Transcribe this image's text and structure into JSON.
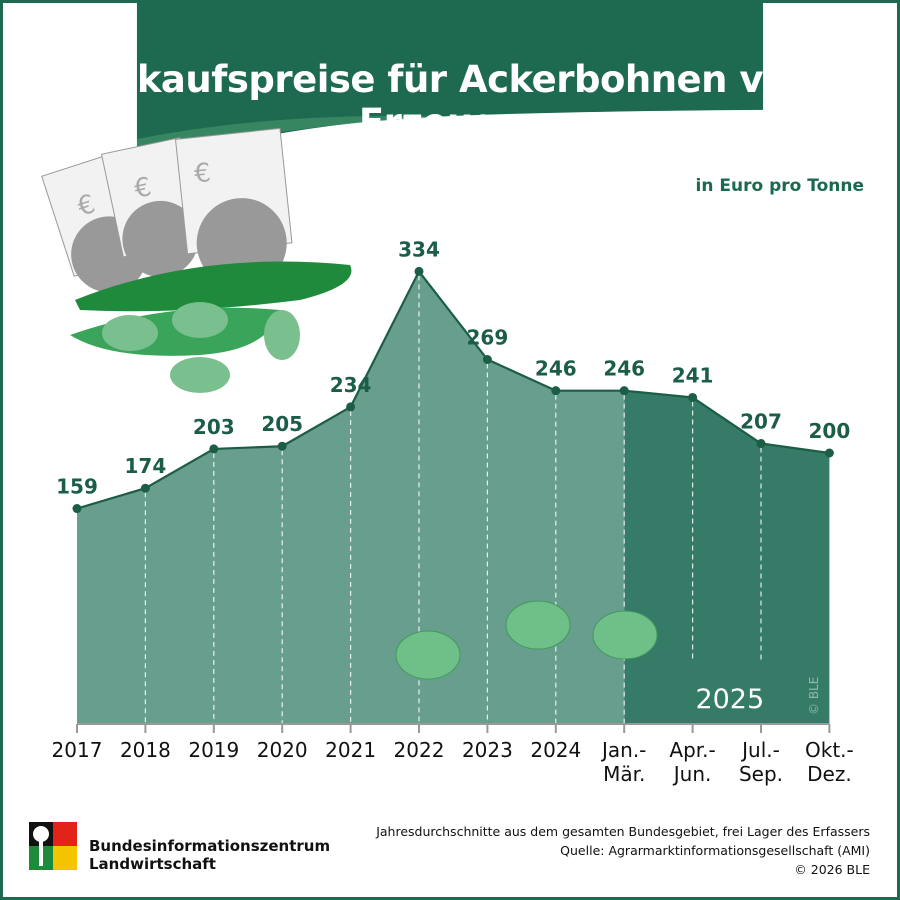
{
  "title": "Einkaufspreise für Ackerbohnen vom Erzeuger",
  "unit_label": "in Euro pro Tonne",
  "chart_data": {
    "type": "area",
    "title": "Einkaufspreise für Ackerbohnen vom Erzeuger",
    "ylabel": "in Euro pro Tonne",
    "categories": [
      "2017",
      "2018",
      "2019",
      "2020",
      "2021",
      "2022",
      "2023",
      "2024",
      "Jan.-\nMär.",
      "Apr.-\nJun.",
      "Jul.-\nSep.",
      "Okt.-\nDez."
    ],
    "tick_labels": [
      [
        "2017"
      ],
      [
        "2018"
      ],
      [
        "2019"
      ],
      [
        "2020"
      ],
      [
        "2021"
      ],
      [
        "2022"
      ],
      [
        "2023"
      ],
      [
        "2024"
      ],
      [
        "Jan.-",
        "Mär."
      ],
      [
        "Apr.-",
        "Jun."
      ],
      [
        "Jul.-",
        "Sep."
      ],
      [
        "Okt.-",
        "Dez."
      ]
    ],
    "values": [
      159,
      174,
      203,
      205,
      234,
      334,
      269,
      246,
      246,
      241,
      207,
      200
    ],
    "data_labels": [
      "159",
      "174",
      "203",
      "205",
      "234",
      "334",
      "269",
      "246",
      "246",
      "241",
      "207",
      "200"
    ],
    "ylim": [
      0,
      340
    ],
    "grid": false,
    "highlight_group_label": "2025",
    "highlight_start_index": 8,
    "colors": {
      "area": "#689e8e",
      "highlight_area": "#367b67",
      "line": "#1b5e45",
      "label": "#1b5e45"
    }
  },
  "watermark": "© BLE",
  "footer": {
    "note": "Jahresdurchschnitte aus dem gesamten Bundesgebiet, frei Lager des Erfassers",
    "source": "Quelle: Agrarmarktinformationsgesellschaft (AMI)",
    "copyright": "© 2026 BLE"
  },
  "organization": {
    "line1": "Bundesinformationszentrum",
    "line2": "Landwirtschaft"
  },
  "colors": {
    "header": "#1d6a50"
  }
}
